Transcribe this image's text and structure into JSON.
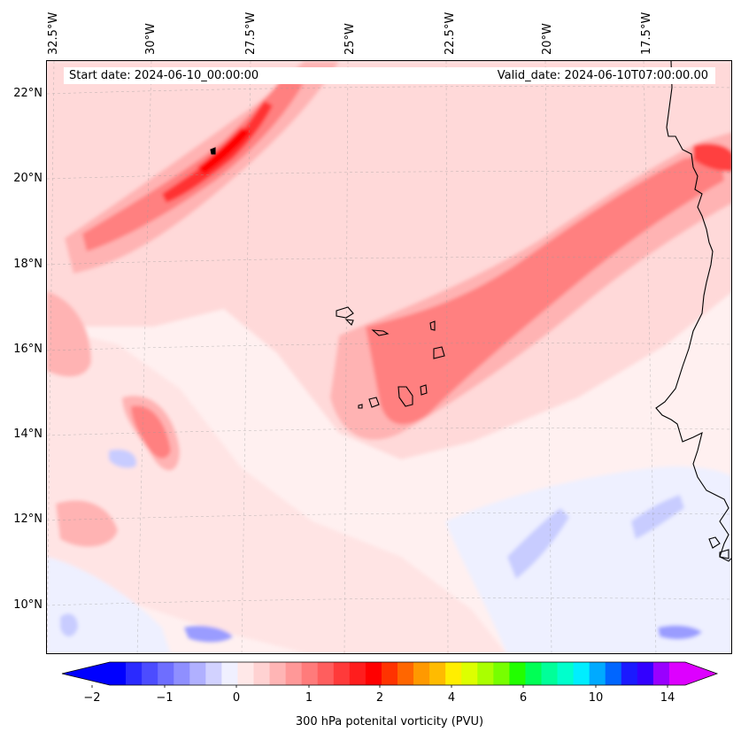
{
  "map": {
    "longitude_labels": [
      "32.5°W",
      "30°W",
      "27.5°W",
      "25°W",
      "22.5°W",
      "20°W",
      "17.5°W"
    ],
    "latitude_labels": [
      "22°N",
      "20°N",
      "18°N",
      "16°N",
      "14°N",
      "12°N",
      "10°N"
    ],
    "start_date": "Start date: 2024-06-10_00:00:00",
    "valid_date": "Valid_date: 2024-06-10T07:00:00.00",
    "field": "300 hPa potential vorticity",
    "colors": {
      "background": "#fff0f0",
      "light_pink": "#ffd9d9",
      "pink": "#ffb3b3",
      "medium_red": "#ff8080",
      "red": "#ff4040",
      "strong_red": "#ff0000",
      "light_blue": "#eef0ff",
      "blue": "#c8ccff",
      "medium_blue": "#9a9cff",
      "coast": "#000000"
    }
  },
  "colorbar": {
    "title": "300 hPa potenital vorticity (PVU)",
    "tick_labels": [
      "−2",
      "−1",
      "0",
      "1",
      "2",
      "4",
      "6",
      "10",
      "14"
    ],
    "colors": [
      "#0000ff",
      "#2a2aff",
      "#4c4cff",
      "#6e6eff",
      "#8f8fff",
      "#b0b0ff",
      "#d2d2ff",
      "#f0f0ff",
      "#ffe8e8",
      "#ffd2d2",
      "#ffb5b5",
      "#ff9898",
      "#ff7b7b",
      "#ff5e5e",
      "#ff3a3a",
      "#ff1d1d",
      "#ff0000",
      "#ff3300",
      "#ff6600",
      "#ff9900",
      "#ffbb00",
      "#ffee00",
      "#ddff00",
      "#aaff00",
      "#77ff00",
      "#22ff00",
      "#00ff55",
      "#00ff99",
      "#00ffcc",
      "#00eeff",
      "#00aaff",
      "#0066ff",
      "#1a1aff",
      "#3300ff",
      "#9900ff",
      "#dd00ff"
    ]
  }
}
